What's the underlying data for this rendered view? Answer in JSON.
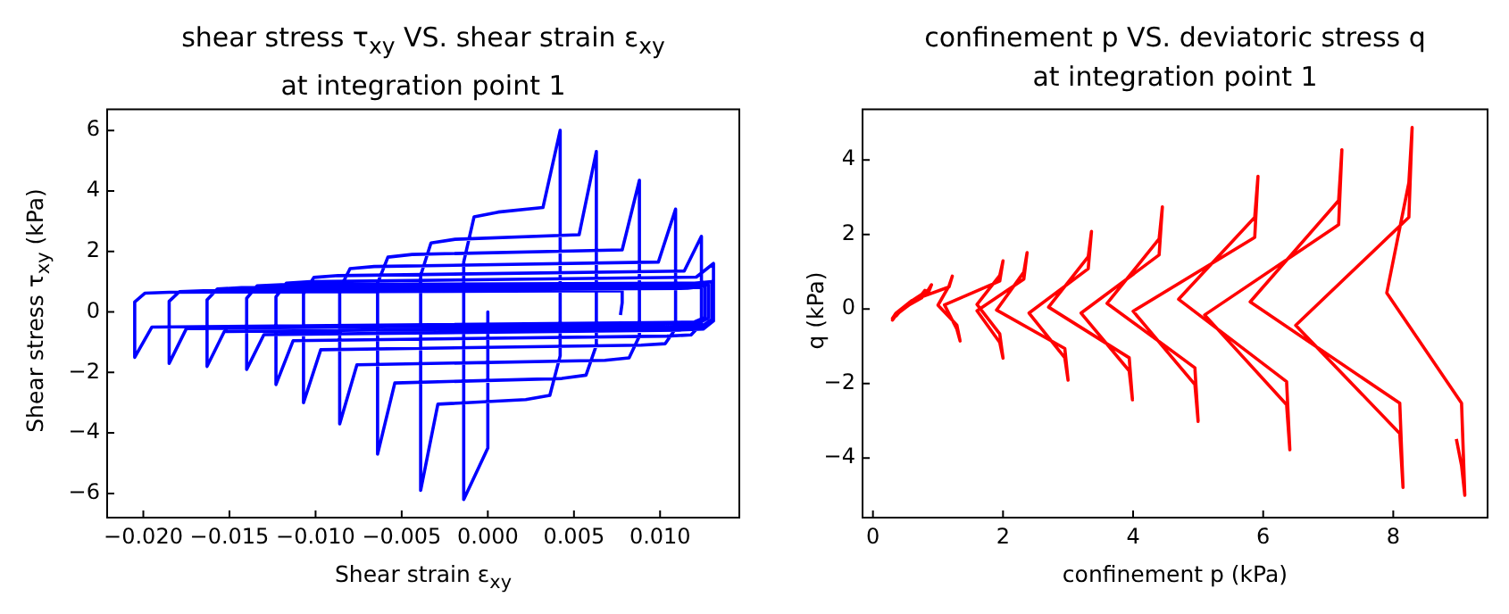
{
  "chart_data": [
    {
      "type": "line",
      "title": "shear stress τ$_{xy}$ VS. shear strain ε$_{xy}$",
      "subtitle": "at integration point 1",
      "xlabel": "Shear strain ε$_{xy}$",
      "ylabel": "Shear stress τ$_{xy}$ (kPa)",
      "xlim": [
        -0.0221,
        0.0146
      ],
      "ylim": [
        -6.8,
        6.7
      ],
      "xticks": [
        {
          "value": -0.02,
          "label": "−0.020"
        },
        {
          "value": -0.015,
          "label": "−0.015"
        },
        {
          "value": -0.01,
          "label": "−0.010"
        },
        {
          "value": -0.005,
          "label": "−0.005"
        },
        {
          "value": 0,
          "label": "0.000"
        },
        {
          "value": 0.005,
          "label": "0.005"
        },
        {
          "value": 0.01,
          "label": "0.010"
        }
      ],
      "yticks": [
        {
          "value": -6,
          "label": "−6"
        },
        {
          "value": -4,
          "label": "−4"
        },
        {
          "value": -2,
          "label": "−2"
        },
        0,
        2,
        4,
        6
      ],
      "series": [
        {
          "color": "#0000ff",
          "x": [
            0,
            0,
            -0.0014,
            -0.0014,
            -0.0008,
            0.0006,
            0.0032,
            0.0042,
            0.0042,
            0.0036,
            0.0022,
            -0.0029,
            -0.0039,
            -0.0039,
            -0.0033,
            -0.0019,
            0.0053,
            0.0063,
            0.0063,
            0.0057,
            0.0043,
            -0.0054,
            -0.0064,
            -0.0064,
            -0.0058,
            -0.0044,
            0.0078,
            0.0088,
            0.0088,
            0.0082,
            0.0068,
            -0.0076,
            -0.0086,
            -0.0086,
            -0.008,
            -0.0066,
            0.0099,
            0.0109,
            0.0109,
            0.0103,
            0.0089,
            -0.0097,
            -0.0107,
            -0.0107,
            -0.0101,
            -0.0087,
            0.0114,
            0.0124,
            0.0124,
            0.0118,
            0.0104,
            -0.0113,
            -0.0123,
            -0.0123,
            -0.0117,
            -0.0103,
            0.0121,
            0.0131,
            0.0131,
            0.0125,
            0.0111,
            -0.013,
            -0.014,
            -0.014,
            -0.0134,
            -0.012,
            0.012,
            0.013,
            0.013,
            0.0124,
            0.011,
            -0.0153,
            -0.0163,
            -0.0163,
            -0.0157,
            -0.0143,
            0.0118,
            0.0128,
            0.0128,
            0.0122,
            0.0108,
            -0.0175,
            -0.0185,
            -0.0185,
            -0.0179,
            -0.0165,
            0.0116,
            0.0126,
            0.0126,
            0.012,
            0.0106,
            -0.0195,
            -0.0205,
            -0.0205,
            -0.0199,
            -0.0185,
            0.0078,
            0.0078,
            0.0077
          ],
          "values": [
            0,
            -4.5,
            -6.2,
            1.65,
            3.14,
            3.3,
            3.45,
            6.0,
            -1.45,
            -2.76,
            -2.9,
            -3.05,
            -5.9,
            1.2,
            2.28,
            2.4,
            2.55,
            5.3,
            -1.1,
            -2.09,
            -2.2,
            -2.35,
            -4.7,
            0.95,
            1.81,
            1.9,
            2.05,
            4.35,
            -0.8,
            -1.52,
            -1.6,
            -1.75,
            -3.7,
            0.75,
            1.43,
            1.5,
            1.65,
            3.4,
            -0.55,
            -1.05,
            -1.1,
            -1.25,
            -3.0,
            0.6,
            1.14,
            1.2,
            1.35,
            2.5,
            -0.4,
            -0.76,
            -0.8,
            -0.95,
            -2.4,
            0.5,
            0.95,
            1.0,
            1.15,
            1.6,
            -0.3,
            -0.57,
            -0.6,
            -0.75,
            -1.9,
            0.45,
            0.86,
            0.9,
            0.95,
            1.0,
            -0.25,
            -0.48,
            -0.5,
            -0.65,
            -1.8,
            0.4,
            0.76,
            0.8,
            0.85,
            0.9,
            -0.2,
            -0.38,
            -0.4,
            -0.55,
            -1.7,
            0.35,
            0.67,
            0.7,
            0.78,
            0.85,
            -0.18,
            -0.33,
            -0.35,
            -0.5,
            -1.5,
            0.33,
            0.62,
            0.65,
            0.7,
            0.3,
            -0.1
          ]
        }
      ]
    },
    {
      "type": "line",
      "title": "confinement p VS. deviatoric stress q",
      "subtitle": "at integration point 1",
      "xlabel": "confinement p (kPa)",
      "ylabel": "q (kPa)",
      "xlim": [
        -0.16,
        9.45
      ],
      "ylim": [
        -5.6,
        5.36
      ],
      "xticks": [
        0,
        2,
        4,
        6,
        8
      ],
      "yticks": [
        {
          "value": -4,
          "label": "−4"
        },
        {
          "value": -2,
          "label": "−2"
        },
        0,
        2,
        4
      ],
      "series": [
        {
          "color": "#ff0000",
          "x": [
            8.97,
            9.05,
            9.1,
            9.05,
            7.9,
            8.24,
            8.29,
            8.24,
            6.5,
            8.1,
            8.15,
            8.1,
            5.8,
            7.16,
            7.21,
            7.16,
            5.1,
            6.36,
            6.41,
            6.36,
            4.7,
            5.87,
            5.92,
            5.87,
            4.0,
            4.95,
            5.0,
            4.95,
            3.6,
            4.4,
            4.45,
            4.4,
            3.2,
            3.94,
            3.99,
            3.94,
            2.7,
            3.31,
            3.36,
            3.31,
            2.4,
            2.95,
            3.0,
            2.95,
            1.9,
            2.32,
            2.37,
            2.32,
            1.6,
            1.95,
            2.0,
            1.95,
            1.6,
            1.95,
            2.0,
            1.95,
            1.1,
            1.29,
            1.34,
            1.29,
            1.0,
            1.17,
            1.22,
            1.17,
            0.6,
            0.35,
            0.3,
            0.4,
            0.6,
            0.85,
            0.9,
            0.85,
            0.6,
            0.35,
            0.3,
            0.4,
            0.6,
            0.75,
            0.8,
            0.75,
            0.55,
            0.4,
            0.35
          ],
          "values": [
            -3.49,
            -4.2,
            -5.0,
            -2.53,
            0.43,
            3.39,
            4.87,
            2.46,
            -0.44,
            -3.34,
            -4.79,
            -2.53,
            0.19,
            2.91,
            4.27,
            2.26,
            -0.16,
            -2.57,
            -3.78,
            -1.95,
            0.26,
            2.46,
            3.56,
            1.92,
            -0.06,
            -2.03,
            -3.02,
            -1.58,
            0.15,
            1.88,
            2.74,
            1.45,
            -0.11,
            -1.66,
            -2.44,
            -1.31,
            0.05,
            1.4,
            2.08,
            1.08,
            -0.11,
            -1.31,
            -1.91,
            -1.06,
            -0.03,
            0.99,
            1.51,
            0.8,
            -0.05,
            -0.9,
            -1.32,
            -0.67,
            0.12,
            0.9,
            1.29,
            0.75,
            0.11,
            -0.54,
            -0.86,
            -0.43,
            0.1,
            0.62,
            0.88,
            0.59,
            0.23,
            -0.12,
            -0.3,
            -0.06,
            0.22,
            0.51,
            0.65,
            0.43,
            0.16,
            -0.12,
            -0.25,
            -0.06,
            0.16,
            0.39,
            0.5,
            0.3,
            0.1,
            -0.1,
            -0.2
          ]
        }
      ]
    }
  ]
}
